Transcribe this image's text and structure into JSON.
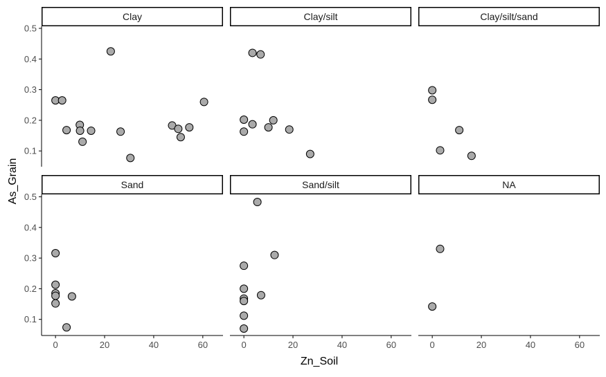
{
  "chart_data": {
    "type": "scatter",
    "xlabel": "Zn_Soil",
    "ylabel": "As_Grain",
    "x_ticks": [
      0,
      20,
      40,
      60
    ],
    "y_ticks": [
      0.1,
      0.2,
      0.3,
      0.4,
      0.5
    ],
    "xlim": [
      -3,
      72
    ],
    "ylim": [
      0.05,
      0.52
    ],
    "grid": false,
    "colors": {
      "point_fill": "#aaaaaa",
      "point_stroke": "#000000",
      "axis": "#000000",
      "tick_text": "#4d4d4d",
      "strip_border": "#000000"
    },
    "panels": [
      {
        "label": "Clay",
        "points": [
          [
            0,
            0.265
          ],
          [
            2.7,
            0.265
          ],
          [
            4.5,
            0.168
          ],
          [
            9.9,
            0.185
          ],
          [
            10,
            0.166
          ],
          [
            11,
            0.13
          ],
          [
            14.5,
            0.166
          ],
          [
            22.5,
            0.425
          ],
          [
            26.5,
            0.163
          ],
          [
            30.5,
            0.077
          ],
          [
            47.5,
            0.183
          ],
          [
            50,
            0.172
          ],
          [
            51,
            0.145
          ],
          [
            54.5,
            0.177
          ],
          [
            60.5,
            0.26
          ]
        ]
      },
      {
        "label": "Clay/silt",
        "points": [
          [
            0,
            0.202
          ],
          [
            0,
            0.163
          ],
          [
            3.5,
            0.187
          ],
          [
            3.5,
            0.42
          ],
          [
            6.8,
            0.415
          ],
          [
            10,
            0.177
          ],
          [
            12,
            0.2
          ],
          [
            18.5,
            0.17
          ],
          [
            27,
            0.09
          ]
        ]
      },
      {
        "label": "Clay/silt/sand",
        "points": [
          [
            0,
            0.298
          ],
          [
            0,
            0.267
          ],
          [
            3.2,
            0.102
          ],
          [
            11,
            0.168
          ],
          [
            16,
            0.084
          ]
        ]
      },
      {
        "label": "Sand",
        "points": [
          [
            0,
            0.316
          ],
          [
            0,
            0.213
          ],
          [
            0,
            0.185
          ],
          [
            0,
            0.177
          ],
          [
            0,
            0.152
          ],
          [
            4.5,
            0.074
          ],
          [
            6.7,
            0.175
          ]
        ]
      },
      {
        "label": "Sand/silt",
        "points": [
          [
            0,
            0.275
          ],
          [
            0,
            0.2
          ],
          [
            0,
            0.168
          ],
          [
            0,
            0.16
          ],
          [
            0,
            0.112
          ],
          [
            0,
            0.07
          ],
          [
            5.5,
            0.483
          ],
          [
            7,
            0.179
          ],
          [
            12.5,
            0.31
          ]
        ]
      },
      {
        "label": "NA",
        "points": [
          [
            0,
            0.142
          ],
          [
            3.2,
            0.33
          ]
        ]
      }
    ]
  }
}
